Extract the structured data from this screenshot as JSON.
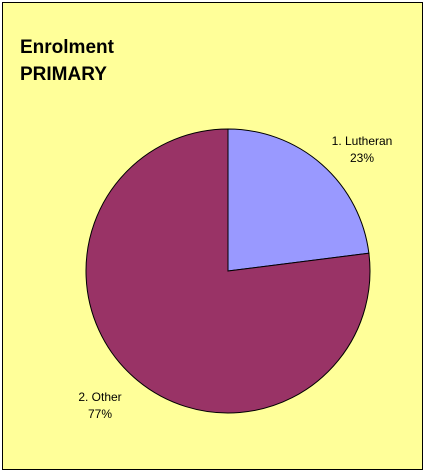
{
  "chart_data": {
    "type": "pie",
    "title": "Enrolment PRIMARY",
    "categories": [
      "1. Lutheran",
      "2. Other"
    ],
    "values": [
      23,
      77
    ],
    "value_labels": [
      "23%",
      "77%"
    ],
    "colors": [
      "#9999ff",
      "#993366"
    ]
  }
}
